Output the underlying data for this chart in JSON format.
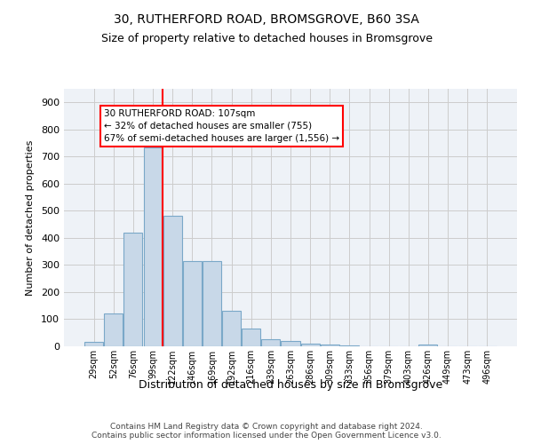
{
  "title_line1": "30, RUTHERFORD ROAD, BROMSGROVE, B60 3SA",
  "title_line2": "Size of property relative to detached houses in Bromsgrove",
  "xlabel": "Distribution of detached houses by size in Bromsgrove",
  "ylabel": "Number of detached properties",
  "bar_values": [
    18,
    122,
    418,
    735,
    480,
    315,
    316,
    130,
    65,
    25,
    20,
    10,
    5,
    2,
    1,
    0,
    0,
    5,
    0,
    0,
    0
  ],
  "bar_labels": [
    "29sqm",
    "52sqm",
    "76sqm",
    "99sqm",
    "122sqm",
    "146sqm",
    "169sqm",
    "192sqm",
    "216sqm",
    "239sqm",
    "263sqm",
    "286sqm",
    "309sqm",
    "333sqm",
    "356sqm",
    "379sqm",
    "403sqm",
    "426sqm",
    "449sqm",
    "473sqm",
    "496sqm"
  ],
  "bar_color": "#c8d8e8",
  "bar_edge_color": "#7aa8c8",
  "grid_color": "#cccccc",
  "vline_color": "red",
  "vline_x": 3.5,
  "annotation_text": "30 RUTHERFORD ROAD: 107sqm\n← 32% of detached houses are smaller (755)\n67% of semi-detached houses are larger (1,556) →",
  "annotation_box_color": "white",
  "annotation_box_edge_color": "red",
  "ylim_max": 950,
  "yticks": [
    0,
    100,
    200,
    300,
    400,
    500,
    600,
    700,
    800,
    900
  ],
  "footer_line1": "Contains HM Land Registry data © Crown copyright and database right 2024.",
  "footer_line2": "Contains public sector information licensed under the Open Government Licence v3.0.",
  "background_color": "#eef2f7",
  "fig_width": 6.0,
  "fig_height": 5.0,
  "dpi": 100
}
